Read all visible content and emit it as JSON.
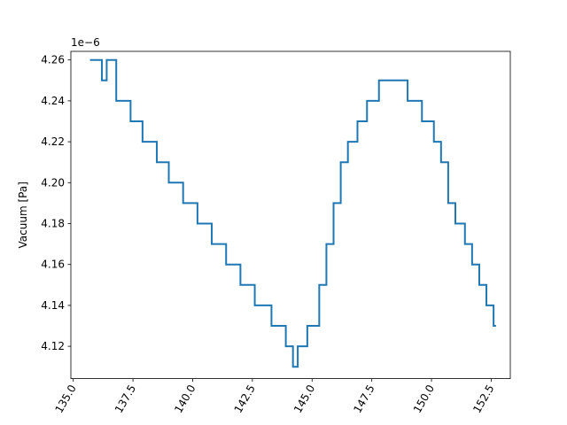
{
  "chart_data": {
    "type": "line",
    "title": "",
    "xlabel": "",
    "ylabel": "Vacuum [Pa]",
    "y_offset_label": "1e−6",
    "xlim": [
      134.9,
      153.3
    ],
    "ylim": [
      4.1042,
      4.2642
    ],
    "grid": false,
    "x_ticks": [
      135.0,
      137.5,
      140.0,
      142.5,
      145.0,
      147.5,
      150.0,
      152.5
    ],
    "x_tick_labels": [
      "135.0",
      "137.5",
      "140.0",
      "142.5",
      "145.0",
      "147.5",
      "150.0",
      "152.5"
    ],
    "y_ticks": [
      4.12,
      4.14,
      4.16,
      4.18,
      4.2,
      4.22,
      4.24,
      4.26
    ],
    "y_tick_labels": [
      "4.12",
      "4.14",
      "4.16",
      "4.18",
      "4.20",
      "4.22",
      "4.24",
      "4.26"
    ],
    "series": [
      {
        "color": "#1f77b4",
        "x": [
          135.7,
          136.2,
          136.2,
          136.4,
          136.4,
          136.8,
          136.8,
          137.4,
          137.4,
          137.9,
          137.9,
          138.5,
          138.5,
          139.0,
          139.0,
          139.6,
          139.6,
          140.2,
          140.2,
          140.8,
          140.8,
          141.4,
          141.4,
          142.0,
          142.0,
          142.6,
          142.6,
          143.3,
          143.3,
          143.9,
          143.9,
          144.2,
          144.2,
          144.4,
          144.4,
          144.8,
          144.8,
          145.3,
          145.3,
          145.6,
          145.6,
          145.9,
          145.9,
          146.2,
          146.2,
          146.5,
          146.5,
          146.9,
          146.9,
          147.3,
          147.3,
          147.8,
          147.8,
          148.2,
          148.2,
          149.0,
          149.0,
          149.3,
          149.3,
          149.6,
          149.6,
          150.1,
          150.1,
          150.4,
          150.4,
          150.7,
          150.7,
          151.0,
          151.0,
          151.4,
          151.4,
          151.7,
          151.7,
          152.0,
          152.0,
          152.3,
          152.3,
          152.6,
          152.6,
          152.7
        ],
        "y": [
          4.26,
          4.26,
          4.25,
          4.25,
          4.26,
          4.26,
          4.24,
          4.24,
          4.23,
          4.23,
          4.22,
          4.22,
          4.21,
          4.21,
          4.2,
          4.2,
          4.19,
          4.19,
          4.18,
          4.18,
          4.17,
          4.17,
          4.16,
          4.16,
          4.15,
          4.15,
          4.14,
          4.14,
          4.13,
          4.13,
          4.12,
          4.12,
          4.11,
          4.11,
          4.12,
          4.12,
          4.13,
          4.13,
          4.15,
          4.15,
          4.17,
          4.17,
          4.19,
          4.19,
          4.21,
          4.21,
          4.22,
          4.22,
          4.23,
          4.23,
          4.24,
          4.24,
          4.25,
          4.25,
          4.25,
          4.25,
          4.24,
          4.24,
          4.24,
          4.24,
          4.23,
          4.23,
          4.22,
          4.22,
          4.21,
          4.21,
          4.19,
          4.19,
          4.18,
          4.18,
          4.17,
          4.17,
          4.16,
          4.16,
          4.15,
          4.15,
          4.14,
          4.14,
          4.13,
          4.13
        ]
      }
    ]
  }
}
